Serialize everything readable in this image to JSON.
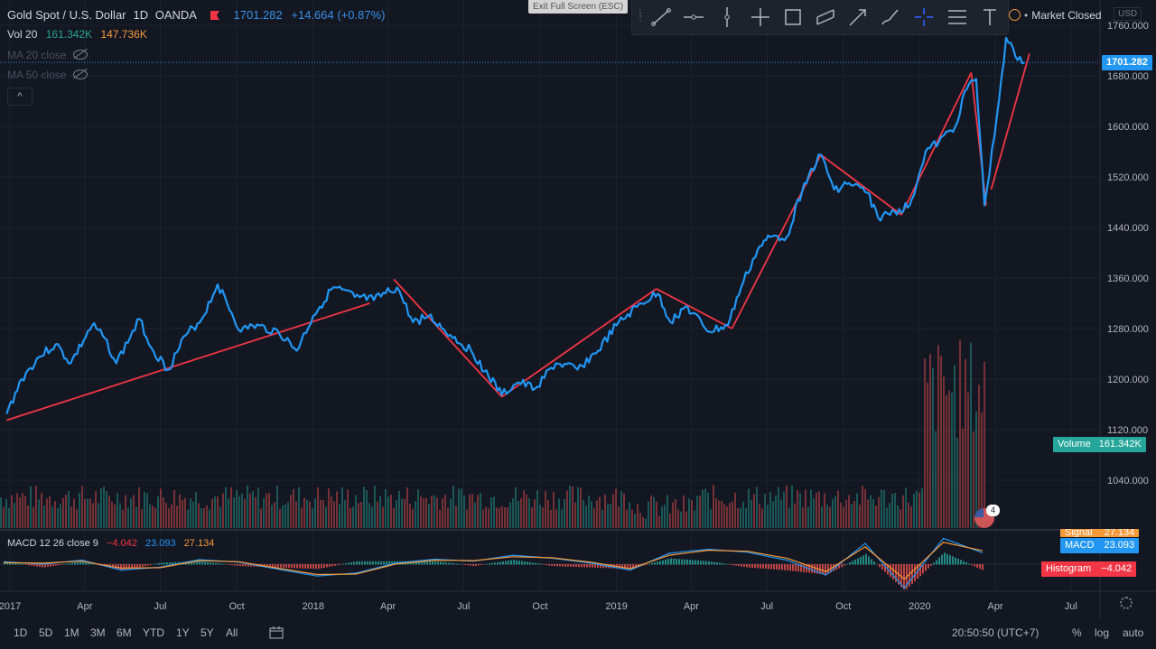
{
  "header": {
    "symbol_title": "Gold Spot / U.S. Dollar",
    "interval": "1D",
    "exchange": "OANDA",
    "last_price": "1701.282",
    "change": "+14.664 (+0.87%)",
    "exit_fullscreen": "Exit Full Screen (ESC)",
    "market_status": "Market Closed",
    "currency": "USD"
  },
  "legends": {
    "volume_label": "Vol 20",
    "volume_value1": "161.342K",
    "volume_value2": "147.736K",
    "ma20_label": "MA 20 close",
    "ma50_label": "MA 50 close",
    "collapse_icon": "^"
  },
  "toolbar": {
    "tools": [
      "trend-line-icon",
      "horizontal-ray-icon",
      "vertical-line-icon",
      "cross-line-icon",
      "rectangle-icon",
      "parallel-channel-icon",
      "arrow-icon",
      "brush-icon",
      "crosshair-icon",
      "fib-retracement-icon",
      "text-icon"
    ],
    "active_tool": "crosshair-icon"
  },
  "price_axis": {
    "ticks": [
      "1760.000",
      "1680.000",
      "1600.000",
      "1520.000",
      "1440.000",
      "1360.000",
      "1280.000",
      "1200.000",
      "1120.000",
      "1040.000"
    ],
    "last_price_label": "1701.282",
    "volume_tag_label": "Volume",
    "volume_tag_value": "161.342K"
  },
  "macd": {
    "legend_label": "MACD 12 26 close 9",
    "histogram_value": "−4.042",
    "macd_value": "23.093",
    "signal_value": "27.134",
    "tag_signal_label": "Signal",
    "tag_signal_value": "27.134",
    "tag_macd_label": "MACD",
    "tag_macd_value": "23.093",
    "tag_hist_label": "Histogram",
    "tag_hist_value": "−4.042"
  },
  "time_axis": {
    "ticks": [
      "2017",
      "Apr",
      "Jul",
      "Oct",
      "2018",
      "Apr",
      "Jul",
      "Oct",
      "2019",
      "Apr",
      "Jul",
      "Oct",
      "2020",
      "Apr",
      "Jul"
    ]
  },
  "bottom_bar": {
    "ranges": [
      "1D",
      "5D",
      "1M",
      "3M",
      "6M",
      "YTD",
      "1Y",
      "5Y",
      "All"
    ],
    "clock": "20:50:50 (UTC+7)",
    "percent": "%",
    "log": "log",
    "auto": "auto"
  },
  "event_badge_count": "4",
  "colors": {
    "background": "#131722",
    "price_line": "#2196f3",
    "trendline": "#f23645",
    "volume_up": "#26a69a",
    "volume_down": "#ef5350",
    "macd_line": "#2196f3",
    "signal_line": "#f79a3a"
  },
  "chart_data": {
    "type": "line",
    "title": "Gold Spot / U.S. Dollar",
    "ylim": [
      1080,
      1780
    ],
    "x_range": [
      "2016-12-20",
      "2020-08-05"
    ],
    "grid": true,
    "series": [
      {
        "name": "Gold Spot / U.S. Dollar",
        "x": [
          "2016-12-28",
          "2017-01-15",
          "2017-02-05",
          "2017-02-25",
          "2017-03-15",
          "2017-04-10",
          "2017-04-25",
          "2017-05-09",
          "2017-06-06",
          "2017-06-20",
          "2017-07-10",
          "2017-08-01",
          "2017-08-20",
          "2017-09-08",
          "2017-10-06",
          "2017-10-20",
          "2017-11-20",
          "2017-12-12",
          "2018-01-01",
          "2018-01-25",
          "2018-02-20",
          "2018-03-15",
          "2018-04-12",
          "2018-05-01",
          "2018-05-20",
          "2018-06-15",
          "2018-07-10",
          "2018-08-16",
          "2018-09-05",
          "2018-09-25",
          "2018-10-20",
          "2018-11-15",
          "2018-12-10",
          "2019-01-01",
          "2019-01-31",
          "2019-02-20",
          "2019-03-07",
          "2019-03-25",
          "2019-04-23",
          "2019-05-15",
          "2019-05-31",
          "2019-06-20",
          "2019-07-05",
          "2019-07-25",
          "2019-08-15",
          "2019-09-04",
          "2019-09-20",
          "2019-10-08",
          "2019-10-30",
          "2019-11-12",
          "2019-12-02",
          "2019-12-20",
          "2020-01-08",
          "2020-01-24",
          "2020-02-13",
          "2020-02-24",
          "2020-03-09",
          "2020-03-19",
          "2020-03-31",
          "2020-04-14",
          "2020-04-28",
          "2020-05-06"
        ],
        "values": [
          1145,
          1200,
          1235,
          1255,
          1225,
          1285,
          1265,
          1225,
          1295,
          1250,
          1215,
          1270,
          1295,
          1350,
          1275,
          1285,
          1275,
          1245,
          1300,
          1345,
          1330,
          1325,
          1345,
          1290,
          1300,
          1270,
          1245,
          1175,
          1195,
          1185,
          1225,
          1215,
          1245,
          1285,
          1320,
          1335,
          1290,
          1315,
          1275,
          1285,
          1345,
          1405,
          1425,
          1425,
          1510,
          1555,
          1500,
          1510,
          1495,
          1455,
          1465,
          1475,
          1560,
          1575,
          1600,
          1655,
          1675,
          1475,
          1585,
          1740,
          1705,
          1701
        ]
      },
      {
        "name": "Volume",
        "x": [
          "2017-01",
          "2017-07",
          "2018-01",
          "2018-07",
          "2019-01",
          "2019-07",
          "2020-01",
          "2020-03",
          "2020-04",
          "2020-05"
        ],
        "values": [
          95000,
          82000,
          88000,
          78000,
          70000,
          90000,
          80000,
          260000,
          240000,
          161342
        ]
      },
      {
        "name": "MACD",
        "values": [
          5,
          0,
          8,
          -12,
          -6,
          9,
          4,
          -10,
          -24,
          -18,
          2,
          10,
          6,
          18,
          12,
          2,
          -12,
          22,
          30,
          24,
          8,
          -22,
          42,
          -48,
          52,
          23
        ]
      },
      {
        "name": "Signal",
        "values": [
          3,
          2,
          6,
          -8,
          -7,
          7,
          5,
          -8,
          -21,
          -20,
          0,
          8,
          7,
          15,
          13,
          4,
          -9,
          18,
          28,
          26,
          12,
          -15,
          35,
          -30,
          44,
          27
        ]
      }
    ]
  }
}
